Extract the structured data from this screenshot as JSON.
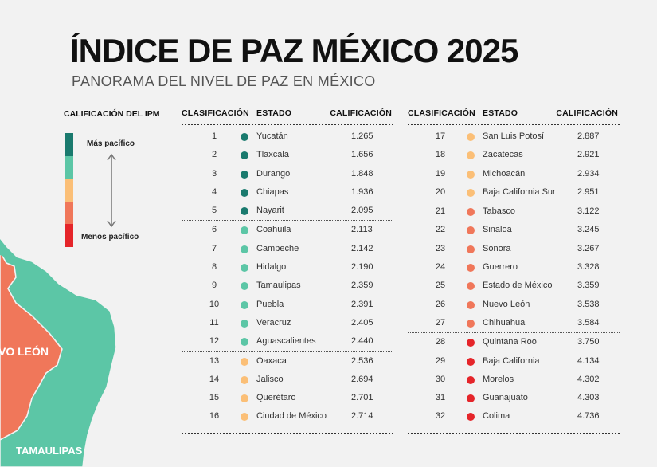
{
  "header": {
    "title": "ÍNDICE DE PAZ MÉXICO 2025",
    "subtitle": "PANORAMA DEL NIVEL DE PAZ EN MÉXICO"
  },
  "legend": {
    "title": "CALIFICACIÓN DEL IPM",
    "top_label": "Más pacífico",
    "bottom_label": "Menos pacífico",
    "colors": [
      "#1a7a6e",
      "#5cc6a6",
      "#fbbf77",
      "#f0775a",
      "#e5252a"
    ]
  },
  "map": {
    "labels": [
      "VO LEÓN",
      "TAMAULIPAS"
    ]
  },
  "table": {
    "headers": {
      "rank": "CLASIFICACIÓN",
      "state": "ESTADO",
      "score": "CALIFICACIÓN"
    },
    "left": [
      {
        "rank": "1",
        "state": "Yucatán",
        "score": "1.265",
        "color": "#1a7a6e"
      },
      {
        "rank": "2",
        "state": "Tlaxcala",
        "score": "1.656",
        "color": "#1a7a6e"
      },
      {
        "rank": "3",
        "state": "Durango",
        "score": "1.848",
        "color": "#1a7a6e"
      },
      {
        "rank": "4",
        "state": "Chiapas",
        "score": "1.936",
        "color": "#1a7a6e"
      },
      {
        "rank": "5",
        "state": "Nayarit",
        "score": "2.095",
        "color": "#1a7a6e"
      },
      {
        "rank": "6",
        "state": "Coahuila",
        "score": "2.113",
        "color": "#5cc6a6"
      },
      {
        "rank": "7",
        "state": "Campeche",
        "score": "2.142",
        "color": "#5cc6a6"
      },
      {
        "rank": "8",
        "state": "Hidalgo",
        "score": "2.190",
        "color": "#5cc6a6"
      },
      {
        "rank": "9",
        "state": "Tamaulipas",
        "score": "2.359",
        "color": "#5cc6a6"
      },
      {
        "rank": "10",
        "state": "Puebla",
        "score": "2.391",
        "color": "#5cc6a6"
      },
      {
        "rank": "11",
        "state": "Veracruz",
        "score": "2.405",
        "color": "#5cc6a6"
      },
      {
        "rank": "12",
        "state": "Aguascalientes",
        "score": "2.440",
        "color": "#5cc6a6"
      },
      {
        "rank": "13",
        "state": "Oaxaca",
        "score": "2.536",
        "color": "#fbbf77"
      },
      {
        "rank": "14",
        "state": "Jalisco",
        "score": "2.694",
        "color": "#fbbf77"
      },
      {
        "rank": "15",
        "state": "Querétaro",
        "score": "2.701",
        "color": "#fbbf77"
      },
      {
        "rank": "16",
        "state": "Ciudad de México",
        "score": "2.714",
        "color": "#fbbf77"
      }
    ],
    "right": [
      {
        "rank": "17",
        "state": "San Luis Potosí",
        "score": "2.887",
        "color": "#fbbf77"
      },
      {
        "rank": "18",
        "state": "Zacatecas",
        "score": "2.921",
        "color": "#fbbf77"
      },
      {
        "rank": "19",
        "state": "Michoacán",
        "score": "2.934",
        "color": "#fbbf77"
      },
      {
        "rank": "20",
        "state": "Baja California Sur",
        "score": "2.951",
        "color": "#fbbf77"
      },
      {
        "rank": "21",
        "state": "Tabasco",
        "score": "3.122",
        "color": "#f0775a"
      },
      {
        "rank": "22",
        "state": "Sinaloa",
        "score": "3.245",
        "color": "#f0775a"
      },
      {
        "rank": "23",
        "state": "Sonora",
        "score": "3.267",
        "color": "#f0775a"
      },
      {
        "rank": "24",
        "state": "Guerrero",
        "score": "3.328",
        "color": "#f0775a"
      },
      {
        "rank": "25",
        "state": "Estado de México",
        "score": "3.359",
        "color": "#f0775a"
      },
      {
        "rank": "26",
        "state": "Nuevo León",
        "score": "3.538",
        "color": "#f0775a"
      },
      {
        "rank": "27",
        "state": "Chihuahua",
        "score": "3.584",
        "color": "#f0775a"
      },
      {
        "rank": "28",
        "state": "Quintana Roo",
        "score": "3.750",
        "color": "#e5252a"
      },
      {
        "rank": "29",
        "state": "Baja California",
        "score": "4.134",
        "color": "#e5252a"
      },
      {
        "rank": "30",
        "state": "Morelos",
        "score": "4.302",
        "color": "#e5252a"
      },
      {
        "rank": "31",
        "state": "Guanajuato",
        "score": "4.303",
        "color": "#e5252a"
      },
      {
        "rank": "32",
        "state": "Colima",
        "score": "4.736",
        "color": "#e5252a"
      }
    ]
  }
}
